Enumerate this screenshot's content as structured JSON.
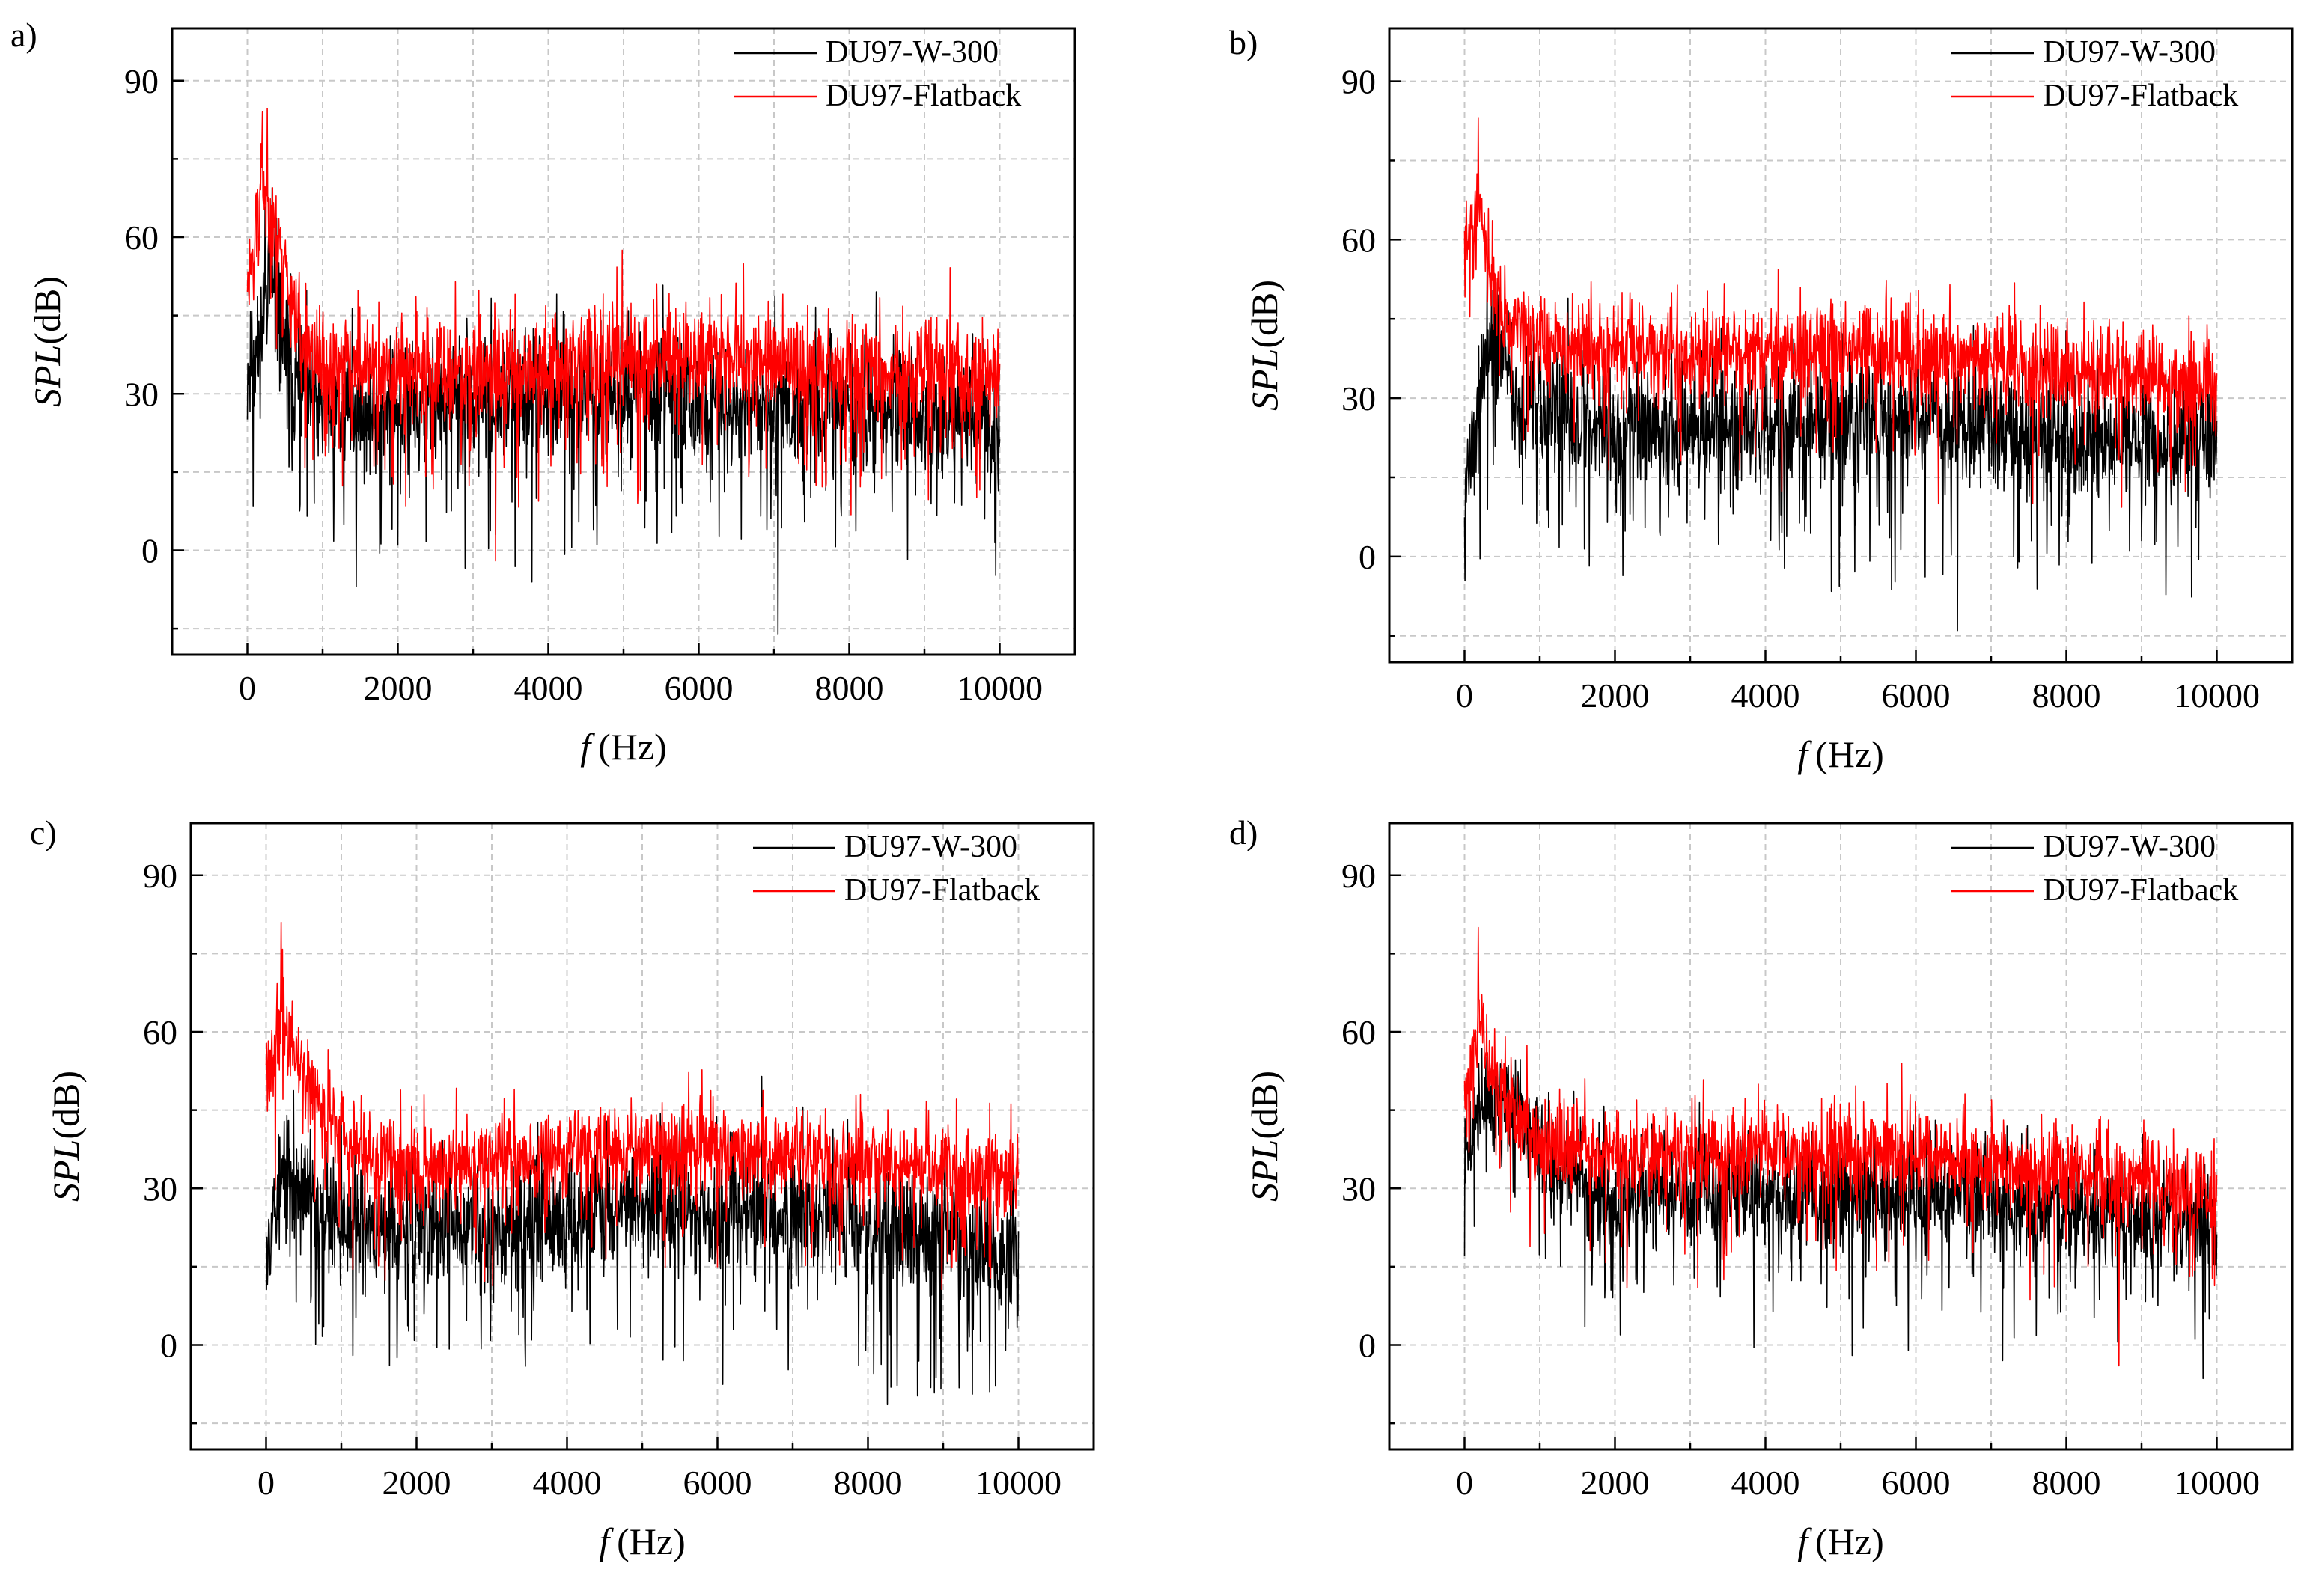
{
  "figure": {
    "description_free": true
  },
  "colors": {
    "series_du97_w300": "#000000",
    "series_flatback": "#ff0000",
    "grid": "#c8c8c8",
    "frame": "#000000"
  },
  "chart_data": [
    {
      "type": "line",
      "panel_label": "a)",
      "xlabel_italic": "f",
      "xlabel_unit": "(Hz)",
      "ylabel_italic": "SPL",
      "ylabel_unit": "(dB)",
      "xlim": [
        -1000,
        11000
      ],
      "ylim": [
        -20,
        100
      ],
      "xticks": [
        "0",
        "2000",
        "4000",
        "6000",
        "8000",
        "10000"
      ],
      "xtick_values": [
        0,
        2000,
        4000,
        6000,
        8000,
        10000
      ],
      "yticks": [
        "0",
        "30",
        "60",
        "90"
      ],
      "ytick_values": [
        0,
        30,
        60,
        90
      ],
      "grid": true,
      "legend_position": "top-right",
      "series": [
        {
          "name": "DU97-W-300",
          "color": "#000000",
          "anchors": [
            [
              0,
              34
            ],
            [
              150,
              38
            ],
            [
              300,
              57
            ],
            [
              450,
              42
            ],
            [
              600,
              33
            ],
            [
              800,
              28
            ],
            [
              1500,
              27
            ],
            [
              3000,
              28
            ],
            [
              5000,
              30
            ],
            [
              7000,
              27
            ],
            [
              9000,
              26
            ],
            [
              10000,
              24
            ]
          ],
          "noise": 7,
          "seed": 11,
          "spikes": [
            [
              1450,
              -7
            ],
            [
              2000,
              1
            ],
            [
              7050,
              -16
            ],
            [
              9800,
              6
            ],
            [
              4600,
              4
            ],
            [
              3300,
              3
            ]
          ]
        },
        {
          "name": "DU97-Flatback",
          "color": "#ff0000",
          "anchors": [
            [
              0,
              50
            ],
            [
              100,
              60
            ],
            [
              200,
              72
            ],
            [
              300,
              66
            ],
            [
              450,
              58
            ],
            [
              600,
              48
            ],
            [
              800,
              38
            ],
            [
              1200,
              35
            ],
            [
              3000,
              34
            ],
            [
              5000,
              37
            ],
            [
              6500,
              37
            ],
            [
              8000,
              35
            ],
            [
              10000,
              33
            ]
          ],
          "noise": 6,
          "seed": 23,
          "spikes": [
            [
              200,
              84
            ],
            [
              3300,
              -2
            ],
            [
              6300,
              49
            ],
            [
              5400,
              48
            ]
          ]
        }
      ]
    },
    {
      "type": "line",
      "panel_label": "b)",
      "xlabel_italic": "f",
      "xlabel_unit": "(Hz)",
      "ylabel_italic": "SPL",
      "ylabel_unit": "(dB)",
      "xlim": [
        -1000,
        11000
      ],
      "ylim": [
        -20,
        100
      ],
      "xticks": [
        "0",
        "2000",
        "4000",
        "6000",
        "8000",
        "10000"
      ],
      "xtick_values": [
        0,
        2000,
        4000,
        6000,
        8000,
        10000
      ],
      "yticks": [
        "0",
        "30",
        "60",
        "90"
      ],
      "ytick_values": [
        0,
        30,
        60,
        90
      ],
      "grid": true,
      "legend_position": "top-right",
      "series": [
        {
          "name": "DU97-W-300",
          "color": "#000000",
          "anchors": [
            [
              0,
              15
            ],
            [
              150,
              22
            ],
            [
              250,
              38
            ],
            [
              400,
              42
            ],
            [
              600,
              32
            ],
            [
              1000,
              27
            ],
            [
              3000,
              24
            ],
            [
              5000,
              26
            ],
            [
              7000,
              24
            ],
            [
              9000,
              22
            ],
            [
              10000,
              20
            ]
          ],
          "noise": 7,
          "seed": 37,
          "spikes": [
            [
              6550,
              -14
            ],
            [
              7300,
              0
            ],
            [
              9000,
              3
            ],
            [
              1300,
              6
            ],
            [
              2600,
              4
            ]
          ]
        },
        {
          "name": "DU97-Flatback",
          "color": "#ff0000",
          "anchors": [
            [
              0,
              57
            ],
            [
              100,
              60
            ],
            [
              200,
              67
            ],
            [
              300,
              57
            ],
            [
              450,
              48
            ],
            [
              600,
              44
            ],
            [
              1000,
              40
            ],
            [
              3000,
              38
            ],
            [
              5000,
              39
            ],
            [
              6500,
              38
            ],
            [
              8000,
              35
            ],
            [
              10000,
              33
            ]
          ],
          "noise": 5,
          "seed": 41,
          "spikes": [
            [
              180,
              83
            ],
            [
              6300,
              10
            ],
            [
              2200,
              50
            ],
            [
              5900,
              48
            ]
          ]
        }
      ]
    },
    {
      "type": "line",
      "panel_label": "c)",
      "xlabel_italic": "f",
      "xlabel_unit": "(Hz)",
      "ylabel_italic": "SPL",
      "ylabel_unit": "(dB)",
      "xlim": [
        -1000,
        11000
      ],
      "ylim": [
        -20,
        100
      ],
      "xticks": [
        "0",
        "2000",
        "4000",
        "6000",
        "8000",
        "10000"
      ],
      "xtick_values": [
        0,
        2000,
        4000,
        6000,
        8000,
        10000
      ],
      "yticks": [
        "0",
        "30",
        "60",
        "90"
      ],
      "ytick_values": [
        0,
        30,
        60,
        90
      ],
      "grid": true,
      "legend_position": "top-right",
      "series": [
        {
          "name": "DU97-W-300",
          "color": "#000000",
          "anchors": [
            [
              0,
              20
            ],
            [
              150,
              28
            ],
            [
              300,
              33
            ],
            [
              500,
              30
            ],
            [
              800,
              25
            ],
            [
              1500,
              22
            ],
            [
              3000,
              23
            ],
            [
              5000,
              27
            ],
            [
              7000,
              25
            ],
            [
              9000,
              21
            ],
            [
              10000,
              16
            ]
          ],
          "noise": 7,
          "seed": 53,
          "spikes": [
            [
              1150,
              -2
            ],
            [
              700,
              4
            ],
            [
              2100,
              6
            ],
            [
              9400,
              3
            ],
            [
              300,
              43
            ]
          ]
        },
        {
          "name": "DU97-Flatback",
          "color": "#ff0000",
          "anchors": [
            [
              0,
              52
            ],
            [
              100,
              55
            ],
            [
              200,
              66
            ],
            [
              300,
              60
            ],
            [
              450,
              55
            ],
            [
              600,
              49
            ],
            [
              800,
              45
            ],
            [
              1200,
              38
            ],
            [
              2000,
              34
            ],
            [
              3500,
              36
            ],
            [
              5000,
              38
            ],
            [
              6500,
              37
            ],
            [
              8000,
              35
            ],
            [
              10000,
              32
            ]
          ],
          "noise": 5,
          "seed": 59,
          "spikes": [
            [
              200,
              81
            ],
            [
              6000,
              15
            ],
            [
              2100,
              48
            ],
            [
              3300,
              49
            ]
          ]
        }
      ]
    },
    {
      "type": "line",
      "panel_label": "d)",
      "xlabel_italic": "f",
      "xlabel_unit": "(Hz)",
      "ylabel_italic": "SPL",
      "ylabel_unit": "(dB)",
      "xlim": [
        -1000,
        11000
      ],
      "ylim": [
        -20,
        100
      ],
      "xticks": [
        "0",
        "2000",
        "4000",
        "6000",
        "8000",
        "10000"
      ],
      "xtick_values": [
        0,
        2000,
        4000,
        6000,
        8000,
        10000
      ],
      "yticks": [
        "0",
        "30",
        "60",
        "90"
      ],
      "ytick_values": [
        0,
        30,
        60,
        90
      ],
      "grid": true,
      "legend_position": "top-right",
      "series": [
        {
          "name": "DU97-W-300",
          "color": "#000000",
          "anchors": [
            [
              0,
              35
            ],
            [
              200,
              45
            ],
            [
              500,
              47
            ],
            [
              800,
              42
            ],
            [
              1200,
              33
            ],
            [
              2000,
              28
            ],
            [
              4000,
              29
            ],
            [
              6000,
              29
            ],
            [
              8000,
              26
            ],
            [
              10000,
              22
            ]
          ],
          "noise": 6,
          "seed": 71,
          "spikes": [
            [
              5150,
              -2
            ],
            [
              5900,
              -1
            ],
            [
              7150,
              -3
            ],
            [
              0,
              17
            ],
            [
              9900,
              5
            ]
          ]
        },
        {
          "name": "DU97-Flatback",
          "color": "#ff0000",
          "anchors": [
            [
              0,
              45
            ],
            [
              100,
              55
            ],
            [
              200,
              62
            ],
            [
              350,
              55
            ],
            [
              600,
              46
            ],
            [
              1000,
              38
            ],
            [
              2000,
              37
            ],
            [
              4000,
              37
            ],
            [
              6000,
              37
            ],
            [
              8000,
              33
            ],
            [
              10000,
              28
            ]
          ],
          "noise": 5,
          "seed": 83,
          "spikes": [
            [
              180,
              80
            ],
            [
              8700,
              -4
            ],
            [
              1600,
              51
            ],
            [
              3100,
              11
            ]
          ]
        }
      ]
    }
  ]
}
